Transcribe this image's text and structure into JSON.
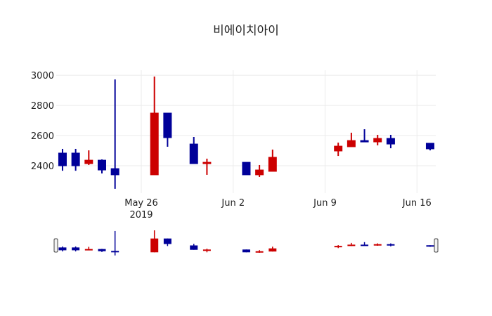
{
  "chart_data": {
    "type": "candlestick",
    "title": "비에이치아이",
    "xlabel": "",
    "ylabel": "",
    "x_range": [
      "2019-05-19T12:30",
      "2019-06-17T10:20"
    ],
    "ylim": [
      2242,
      3033
    ],
    "y_ticks": [
      2400,
      2600,
      2800,
      3000
    ],
    "x_ticks": [
      {
        "date": "2019-05-26",
        "label": "May 26",
        "sublabel": "2019"
      },
      {
        "date": "2019-06-02",
        "label": "Jun 2",
        "sublabel": ""
      },
      {
        "date": "2019-06-09",
        "label": "Jun 9",
        "sublabel": ""
      },
      {
        "date": "2019-06-16",
        "label": "Jun 16",
        "sublabel": ""
      }
    ],
    "grid": true,
    "legend": false,
    "increasing_color": "#cc0000",
    "decreasing_color": "#000099",
    "rangeslider": true,
    "candles": [
      {
        "date": "2019-05-20",
        "open": 2484,
        "high": 2512,
        "low": 2367,
        "close": 2400
      },
      {
        "date": "2019-05-21",
        "open": 2484,
        "high": 2512,
        "low": 2367,
        "close": 2400
      },
      {
        "date": "2019-05-22",
        "open": 2414,
        "high": 2502,
        "low": 2405,
        "close": 2437
      },
      {
        "date": "2019-05-23",
        "open": 2437,
        "high": 2442,
        "low": 2349,
        "close": 2372
      },
      {
        "date": "2019-05-24",
        "open": 2381,
        "high": 2972,
        "low": 2247,
        "close": 2340
      },
      {
        "date": "2019-05-27",
        "open": 2340,
        "high": 2991,
        "low": 2340,
        "close": 2749
      },
      {
        "date": "2019-05-28",
        "open": 2749,
        "high": 2749,
        "low": 2526,
        "close": 2586
      },
      {
        "date": "2019-05-30",
        "open": 2544,
        "high": 2591,
        "low": 2414,
        "close": 2414
      },
      {
        "date": "2019-05-31",
        "open": 2414,
        "high": 2447,
        "low": 2340,
        "close": 2423
      },
      {
        "date": "2019-06-03",
        "open": 2423,
        "high": 2423,
        "low": 2340,
        "close": 2340
      },
      {
        "date": "2019-06-04",
        "open": 2340,
        "high": 2405,
        "low": 2326,
        "close": 2372
      },
      {
        "date": "2019-06-05",
        "open": 2363,
        "high": 2507,
        "low": 2363,
        "close": 2456
      },
      {
        "date": "2019-06-10",
        "open": 2498,
        "high": 2553,
        "low": 2465,
        "close": 2530
      },
      {
        "date": "2019-06-11",
        "open": 2526,
        "high": 2619,
        "low": 2526,
        "close": 2567
      },
      {
        "date": "2019-06-12",
        "open": 2567,
        "high": 2642,
        "low": 2558,
        "close": 2558
      },
      {
        "date": "2019-06-13",
        "open": 2558,
        "high": 2605,
        "low": 2535,
        "close": 2581
      },
      {
        "date": "2019-06-14",
        "open": 2581,
        "high": 2605,
        "low": 2516,
        "close": 2544
      },
      {
        "date": "2019-06-17",
        "open": 2549,
        "high": 2549,
        "low": 2502,
        "close": 2512
      }
    ]
  }
}
